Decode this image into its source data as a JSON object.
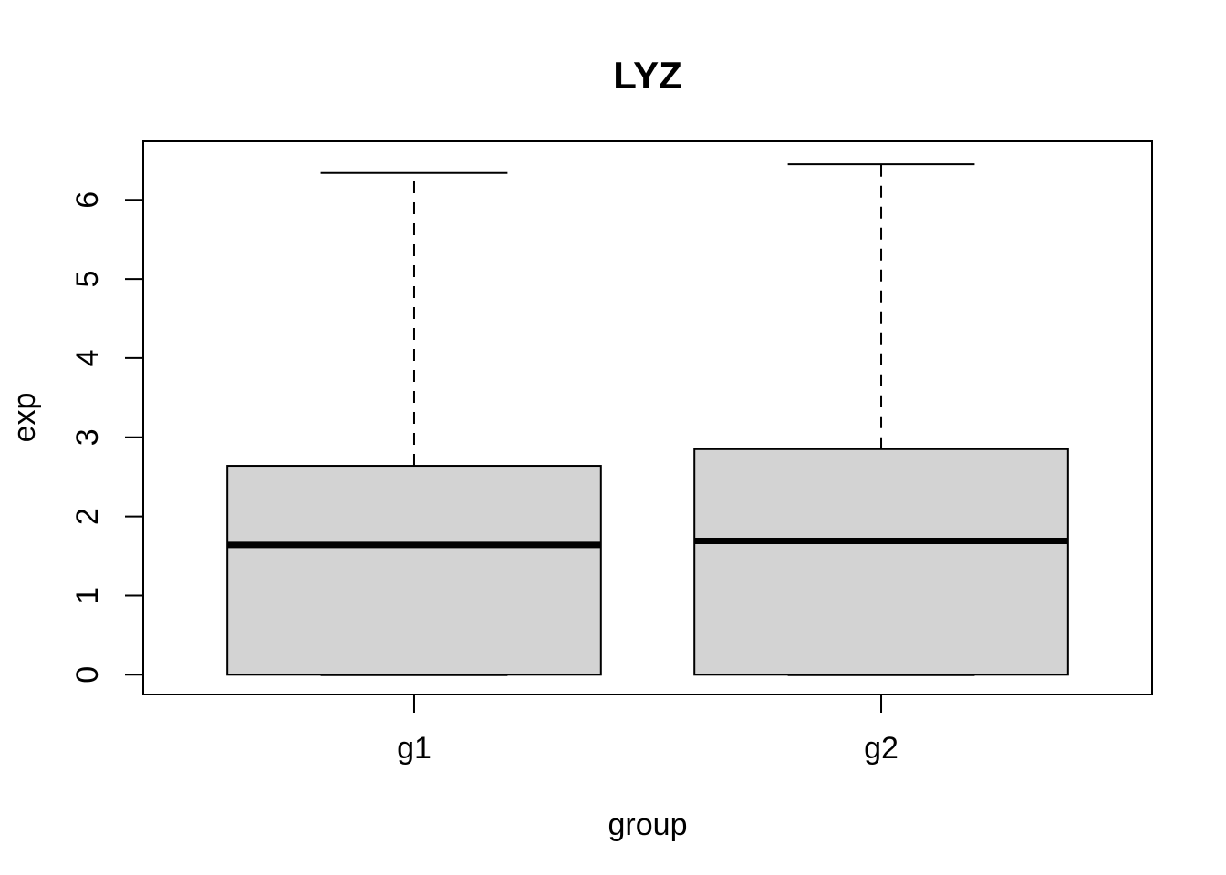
{
  "chart_data": {
    "type": "boxplot",
    "title": "LYZ",
    "xlabel": "group",
    "ylabel": "exp",
    "categories": [
      "g1",
      "g2"
    ],
    "series": [
      {
        "name": "g1",
        "whisker_low": 0,
        "q1": 0,
        "median": 1.64,
        "q3": 2.64,
        "whisker_high": 6.34,
        "outliers": []
      },
      {
        "name": "g2",
        "whisker_low": 0,
        "q1": 0,
        "median": 1.69,
        "q3": 2.85,
        "whisker_high": 6.45,
        "outliers": []
      }
    ],
    "yticks": [
      0,
      1,
      2,
      3,
      4,
      5,
      6
    ],
    "ylim": [
      -0.25,
      6.74
    ],
    "grid": false,
    "legend": "none",
    "colors": {
      "box_fill": "#d3d3d3",
      "line": "#000000",
      "background": "#ffffff"
    }
  }
}
